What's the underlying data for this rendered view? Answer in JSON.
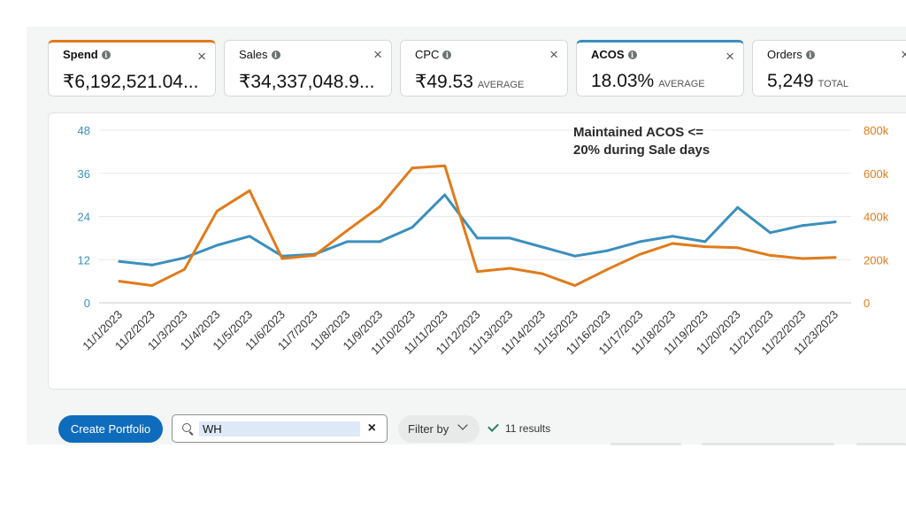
{
  "metrics": [
    {
      "label": "Spend",
      "value": "₹6,192,521.04...",
      "unit": "",
      "selected": "orange"
    },
    {
      "label": "Sales",
      "value": "₹34,337,048.9...",
      "unit": ""
    },
    {
      "label": "CPC",
      "value": "₹49.53",
      "unit": "AVERAGE"
    },
    {
      "label": "ACOS",
      "value": "18.03%",
      "unit": "AVERAGE",
      "selected": "blue"
    },
    {
      "label": "Orders",
      "value": "5,249",
      "unit": "TOTAL"
    }
  ],
  "annotation": "Maintained ACOS <= 20% during Sale days",
  "chart_data": {
    "type": "line",
    "x": [
      "11/1/2023",
      "11/2/2023",
      "11/3/2023",
      "11/4/2023",
      "11/5/2023",
      "11/6/2023",
      "11/7/2023",
      "11/8/2023",
      "11/9/2023",
      "11/10/2023",
      "11/11/2023",
      "11/12/2023",
      "11/13/2023",
      "11/14/2023",
      "11/15/2023",
      "11/16/2023",
      "11/17/2023",
      "11/18/2023",
      "11/19/2023",
      "11/20/2023",
      "11/21/2023",
      "11/22/2023",
      "11/23/2023"
    ],
    "left_axis": {
      "ticks": [
        "0",
        "12",
        "24",
        "36",
        "48"
      ],
      "min": 0,
      "max": 48,
      "color": "#3b8fbd"
    },
    "right_axis": {
      "ticks": [
        "0",
        "200k",
        "400k",
        "600k",
        "800k"
      ],
      "min": 0,
      "max": 800000,
      "color": "#e07b1b"
    },
    "series": [
      {
        "name": "ACOS",
        "axis": "left",
        "color": "#3b8fbd",
        "values": [
          11.5,
          10.5,
          12.5,
          16,
          18.5,
          13,
          13.5,
          17,
          17,
          21,
          30,
          18,
          18,
          15.5,
          13,
          14.5,
          17,
          18.5,
          17,
          26.5,
          19.5,
          21.5,
          22.5
        ]
      },
      {
        "name": "Spend",
        "axis": "right",
        "color": "#e07b1b",
        "values": [
          100000,
          80000,
          155000,
          425000,
          520000,
          205000,
          220000,
          335000,
          445000,
          625000,
          635000,
          145000,
          160000,
          135000,
          80000,
          155000,
          225000,
          275000,
          260000,
          255000,
          220000,
          205000,
          210000
        ]
      }
    ],
    "grid": true
  },
  "toolbar": {
    "create_label": "Create Portfolio",
    "search_value": "WH",
    "clear_icon": "×",
    "filter_label": "Filter by",
    "results_text": "11 results"
  },
  "icons": {
    "info": "i",
    "close": "×"
  }
}
